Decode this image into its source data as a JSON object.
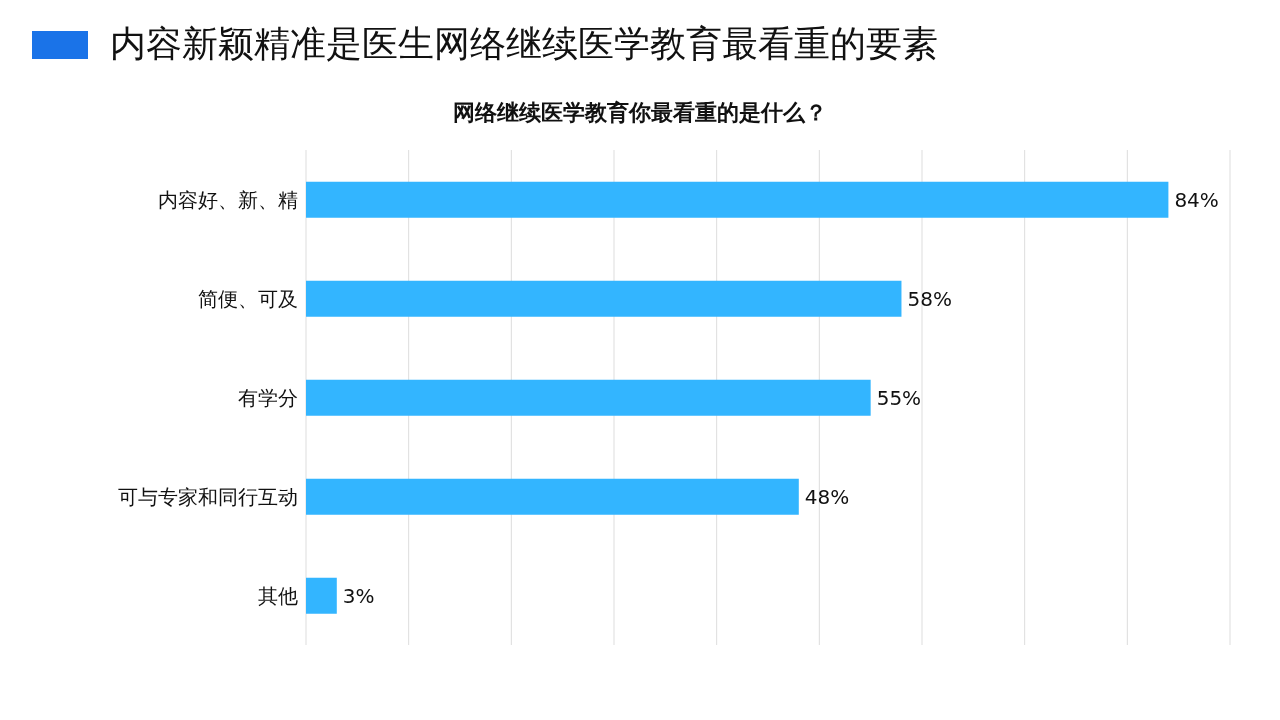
{
  "chart_data": {
    "type": "bar",
    "orientation": "horizontal",
    "title": "内容新颖精准是医生网络继续医学教育最看重的要素",
    "subtitle": "网络继续医学教育你最看重的是什么？",
    "categories": [
      "内容好、新、精",
      "简便、可及",
      "有学分",
      "可与专家和同行互动",
      "其他"
    ],
    "values": [
      84,
      58,
      55,
      48,
      3
    ],
    "value_labels": [
      "84%",
      "58%",
      "55%",
      "48%",
      "3%"
    ],
    "color": "#33b5ff",
    "grid": "x",
    "tick_labels": "y"
  }
}
